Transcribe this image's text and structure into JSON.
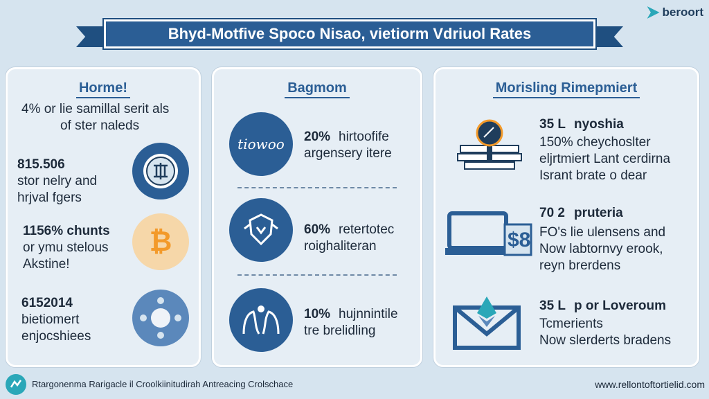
{
  "brand": {
    "name": "beroort"
  },
  "banner": {
    "title": "Bhyd-Motfive Spoco Nisao, vietiorm Vdriuol Rates"
  },
  "panels": [
    {
      "title": "Horme!",
      "intro": [
        "4% or lie samillal serit als",
        "of ster naleds"
      ],
      "items": [
        {
          "value": "815.506",
          "lines": [
            "stor nelry and",
            "hrjval fgers"
          ],
          "icon": "cash-coin-icon"
        },
        {
          "value": "1156% chunts",
          "lines": [
            "or ymu stelous",
            "Akstine!"
          ],
          "icon": "bitcoin-icon"
        },
        {
          "value": "6152014",
          "lines": [
            "bietiomert",
            "enjocshiees"
          ],
          "icon": "network-nodes-icon"
        }
      ]
    },
    {
      "title": "Bagmom",
      "items": [
        {
          "value": "20%",
          "text": "hirtoofife",
          "line2": "argensery itere",
          "icon": "handwritten-logo-icon",
          "logo_text": "tiowoo"
        },
        {
          "value": "60%",
          "text": "retertotec",
          "line2": "roighaliteran",
          "icon": "shield-crest-icon"
        },
        {
          "value": "10%",
          "text": "hujnnintile",
          "line2": "tre brelidling",
          "icon": "hands-people-icon"
        }
      ]
    },
    {
      "title": "Morisling Rimepmiert",
      "items": [
        {
          "value": "35 L",
          "text": "nyoshia",
          "lines": [
            "150% cheychoslter",
            "eljrtmiert Lant cerdirna",
            "Isrant brate o dear"
          ],
          "icon": "scale-lock-icon"
        },
        {
          "value": "70 2",
          "text": "pruteria",
          "lines": [
            "FO's lie ulensens and",
            "Now labtornvy erook,",
            "reyn brerdens"
          ],
          "icon": "laptop-dollar-icon",
          "icon_text": "$8"
        },
        {
          "value": "35 L",
          "text": "p or Loveroum",
          "lines": [
            "Tcmerients",
            "Now slerderts bradens"
          ],
          "icon": "ethereum-envelope-icon"
        }
      ]
    }
  ],
  "footer": {
    "left": "Rtargonenma Rarigacle il Croolkiinitudirah Antreacing Crolschace",
    "right": "www.rellontoftortielid.com"
  },
  "colors": {
    "accent": "#2b5e95",
    "banner": "#2b5e95",
    "bitcoin": "#f39a2a",
    "teal": "#2aa7b8"
  }
}
